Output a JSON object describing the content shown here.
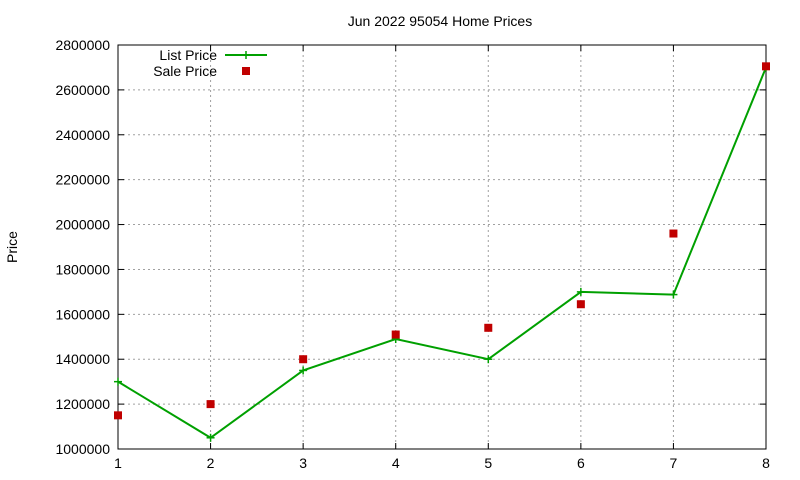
{
  "chart_data": {
    "type": "line",
    "title": "Jun 2022 95054 Home Prices",
    "xlabel": "",
    "ylabel": "Price",
    "x": [
      1,
      2,
      3,
      4,
      5,
      6,
      7,
      8
    ],
    "xlim": [
      1,
      8
    ],
    "ylim": [
      1000000,
      2800000
    ],
    "xticks": [
      1,
      2,
      3,
      4,
      5,
      6,
      7,
      8
    ],
    "yticks": [
      1000000,
      1200000,
      1400000,
      1600000,
      1800000,
      2000000,
      2200000,
      2400000,
      2600000,
      2800000
    ],
    "grid": true,
    "legend_position": "top-left",
    "series": [
      {
        "name": "List Price",
        "style": "line-plus",
        "color": "#00a000",
        "values": [
          1300000,
          1050000,
          1350000,
          1490000,
          1400000,
          1700000,
          1688000,
          2700000
        ]
      },
      {
        "name": "Sale Price",
        "style": "points-square",
        "color": "#c00000",
        "values": [
          1150000,
          1200000,
          1400000,
          1510000,
          1540000,
          1645000,
          1960000,
          2705000
        ]
      }
    ]
  }
}
